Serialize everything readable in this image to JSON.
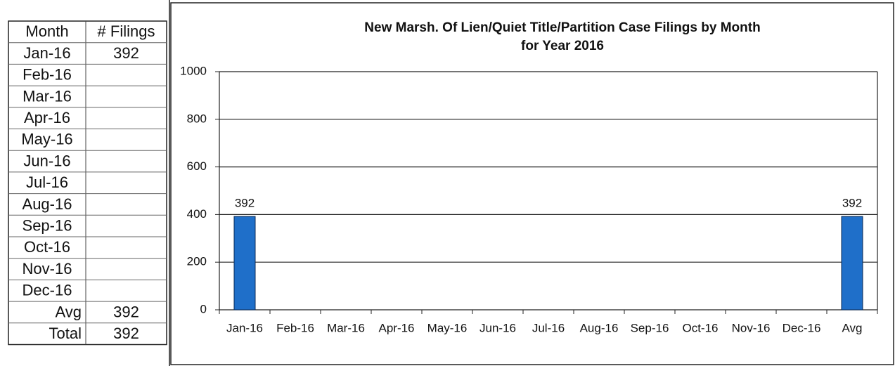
{
  "table": {
    "header": [
      "Month",
      "# Filings"
    ],
    "rows": [
      [
        "Jan-16",
        "392"
      ],
      [
        "Feb-16",
        null
      ],
      [
        "Mar-16",
        null
      ],
      [
        "Apr-16",
        null
      ],
      [
        "May-16",
        null
      ],
      [
        "Jun-16",
        null
      ],
      [
        "Jul-16",
        null
      ],
      [
        "Aug-16",
        null
      ],
      [
        "Sep-16",
        null
      ],
      [
        "Oct-16",
        null
      ],
      [
        "Nov-16",
        null
      ],
      [
        "Dec-16",
        null
      ],
      [
        "Avg",
        "392"
      ],
      [
        "Total",
        "392"
      ]
    ]
  },
  "chart_data": {
    "type": "bar",
    "title": [
      "New Marsh. Of Lien/Quiet Title/Partition Case Filings by Month",
      "for Year  2016"
    ],
    "categories": [
      "Jan-16",
      "Feb-16",
      "Mar-16",
      "Apr-16",
      "May-16",
      "Jun-16",
      "Jul-16",
      "Aug-16",
      "Sep-16",
      "Oct-16",
      "Nov-16",
      "Dec-16",
      "Avg"
    ],
    "values": [
      392,
      null,
      null,
      null,
      null,
      null,
      null,
      null,
      null,
      null,
      null,
      null,
      392
    ],
    "color": "#1f6fc9",
    "ylim": [
      0,
      1000
    ],
    "yticks": [
      0,
      200,
      400,
      600,
      800,
      1000
    ],
    "grid": true
  }
}
